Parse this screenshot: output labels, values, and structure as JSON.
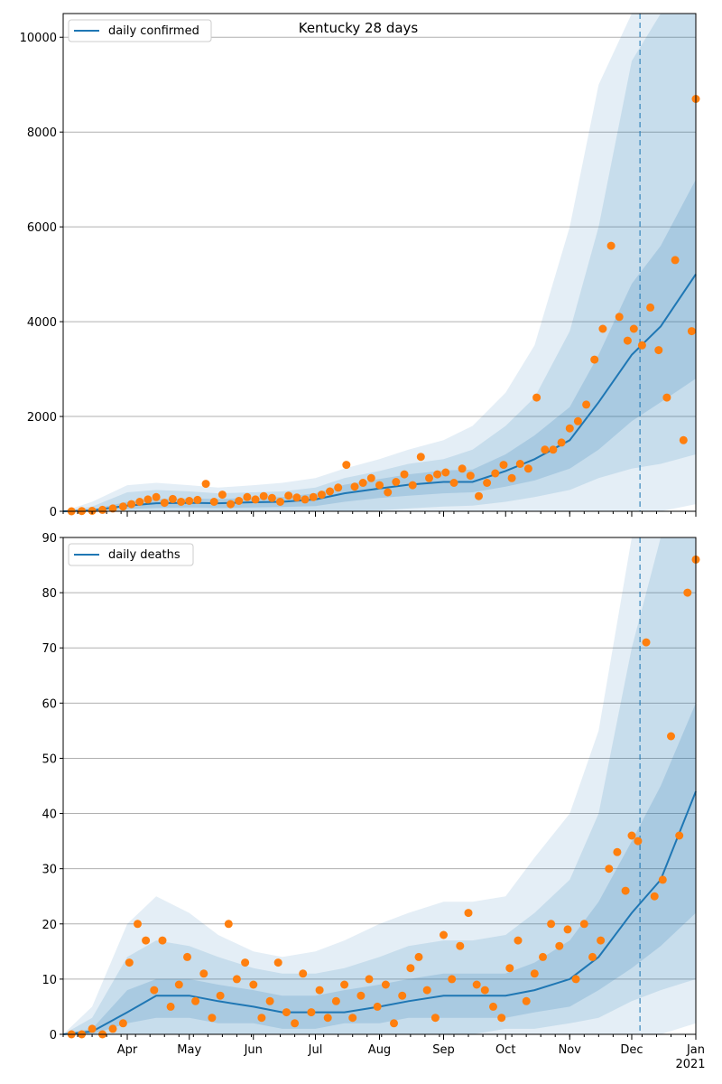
{
  "figure": {
    "title": "Kentucky 28 days"
  },
  "chart_data": [
    {
      "type": "line",
      "title": "Kentucky 28 days",
      "legend": {
        "label": "daily confirmed",
        "placement": "top-left"
      },
      "ylim": [
        0,
        10500
      ],
      "yticks": [
        0,
        2000,
        4000,
        6000,
        8000,
        10000
      ],
      "grid": "horizontal",
      "x_range": [
        "2020-03-01",
        "2021-01-01"
      ],
      "cutoff_date": "2020-12-05",
      "line_color": "#1f77b4",
      "dot_color": "#ff7f0e",
      "band_color": "#1f77b4",
      "mean_series": {
        "dates": [
          "2020-03-01",
          "2020-03-15",
          "2020-04-01",
          "2020-04-15",
          "2020-05-01",
          "2020-05-15",
          "2020-06-01",
          "2020-06-15",
          "2020-07-01",
          "2020-07-15",
          "2020-08-01",
          "2020-08-15",
          "2020-09-01",
          "2020-09-15",
          "2020-10-01",
          "2020-10-15",
          "2020-11-01",
          "2020-11-15",
          "2020-12-01",
          "2020-12-15",
          "2021-01-01"
        ],
        "values": [
          0,
          20,
          120,
          170,
          180,
          170,
          190,
          200,
          250,
          380,
          480,
          560,
          620,
          620,
          850,
          1100,
          1500,
          2300,
          3300,
          3900,
          5000
        ]
      },
      "bands": [
        {
          "level": "outer",
          "lower": [
            0,
            0,
            0,
            0,
            0,
            0,
            0,
            0,
            0,
            0,
            0,
            0,
            0,
            0,
            0,
            0,
            0,
            0,
            0,
            0,
            150
          ],
          "upper": [
            0,
            200,
            550,
            600,
            550,
            500,
            550,
            600,
            700,
            900,
            1100,
            1300,
            1500,
            1800,
            2500,
            3500,
            6000,
            9000,
            10500,
            10500,
            10500
          ]
        },
        {
          "level": "middle",
          "lower": [
            0,
            0,
            0,
            0,
            0,
            0,
            0,
            0,
            0,
            0,
            20,
            60,
            100,
            120,
            200,
            300,
            450,
            700,
            900,
            1000,
            1200
          ],
          "upper": [
            0,
            100,
            400,
            450,
            420,
            380,
            400,
            420,
            500,
            700,
            850,
            1000,
            1100,
            1300,
            1800,
            2400,
            3800,
            6000,
            9500,
            10500,
            10500
          ]
        },
        {
          "level": "inner",
          "lower": [
            0,
            5,
            50,
            70,
            80,
            70,
            80,
            90,
            110,
            200,
            280,
            330,
            380,
            400,
            520,
            650,
            900,
            1300,
            1900,
            2300,
            2800
          ],
          "upper": [
            0,
            40,
            200,
            260,
            270,
            260,
            280,
            300,
            380,
            560,
            680,
            780,
            860,
            880,
            1200,
            1600,
            2200,
            3300,
            4800,
            5600,
            7000
          ]
        }
      ],
      "observed": {
        "dates": [
          "2020-03-05",
          "2020-03-10",
          "2020-03-15",
          "2020-03-20",
          "2020-03-25",
          "2020-03-30",
          "2020-04-03",
          "2020-04-07",
          "2020-04-11",
          "2020-04-15",
          "2020-04-19",
          "2020-04-23",
          "2020-04-27",
          "2020-05-01",
          "2020-05-05",
          "2020-05-09",
          "2020-05-13",
          "2020-05-17",
          "2020-05-21",
          "2020-05-25",
          "2020-05-29",
          "2020-06-02",
          "2020-06-06",
          "2020-06-10",
          "2020-06-14",
          "2020-06-18",
          "2020-06-22",
          "2020-06-26",
          "2020-06-30",
          "2020-07-04",
          "2020-07-08",
          "2020-07-12",
          "2020-07-16",
          "2020-07-20",
          "2020-07-24",
          "2020-07-28",
          "2020-08-01",
          "2020-08-05",
          "2020-08-09",
          "2020-08-13",
          "2020-08-17",
          "2020-08-21",
          "2020-08-25",
          "2020-08-29",
          "2020-09-02",
          "2020-09-06",
          "2020-09-10",
          "2020-09-14",
          "2020-09-18",
          "2020-09-22",
          "2020-09-26",
          "2020-09-30",
          "2020-10-04",
          "2020-10-08",
          "2020-10-12",
          "2020-10-16",
          "2020-10-20",
          "2020-10-24",
          "2020-10-28",
          "2020-11-01",
          "2020-11-05",
          "2020-11-09",
          "2020-11-13",
          "2020-11-17",
          "2020-11-21",
          "2020-11-25",
          "2020-11-29",
          "2020-12-02",
          "2020-12-06",
          "2020-12-10",
          "2020-12-14",
          "2020-12-18",
          "2020-12-22",
          "2020-12-26",
          "2020-12-30",
          "2021-01-01"
        ],
        "values": [
          0,
          5,
          10,
          30,
          60,
          100,
          150,
          200,
          250,
          300,
          180,
          260,
          200,
          220,
          240,
          580,
          200,
          350,
          150,
          220,
          300,
          250,
          320,
          280,
          200,
          330,
          290,
          250,
          300,
          350,
          420,
          500,
          980,
          520,
          600,
          700,
          550,
          400,
          620,
          780,
          550,
          1150,
          700,
          780,
          820,
          600,
          900,
          750,
          320,
          600,
          800,
          980,
          700,
          1000,
          900,
          2400,
          1300,
          1300,
          1450,
          1750,
          1900,
          2250,
          3200,
          3850,
          5600,
          4100,
          3600,
          3850,
          3500,
          4300,
          3400,
          2400,
          5300,
          1500,
          3800,
          8700
        ]
      }
    },
    {
      "type": "line",
      "title": "",
      "legend": {
        "label": "daily deaths",
        "placement": "top-left"
      },
      "ylim": [
        0,
        90
      ],
      "yticks": [
        0,
        10,
        20,
        30,
        40,
        50,
        60,
        70,
        80,
        90
      ],
      "grid": "horizontal",
      "x_range": [
        "2020-03-01",
        "2021-01-01"
      ],
      "cutoff_date": "2020-12-05",
      "line_color": "#1f77b4",
      "dot_color": "#ff7f0e",
      "band_color": "#1f77b4",
      "xtick_labels": [
        "Apr",
        "May",
        "Jun",
        "Jul",
        "Aug",
        "Sep",
        "Oct",
        "Nov",
        "Dec",
        "Jan"
      ],
      "xtick_dates": [
        "2020-04-01",
        "2020-05-01",
        "2020-06-01",
        "2020-07-01",
        "2020-08-01",
        "2020-09-01",
        "2020-10-01",
        "2020-11-01",
        "2020-12-01",
        "2021-01-01"
      ],
      "year_label": "2021",
      "mean_series": {
        "dates": [
          "2020-03-01",
          "2020-03-15",
          "2020-04-01",
          "2020-04-15",
          "2020-05-01",
          "2020-05-15",
          "2020-06-01",
          "2020-06-15",
          "2020-07-01",
          "2020-07-15",
          "2020-08-01",
          "2020-08-15",
          "2020-09-01",
          "2020-09-15",
          "2020-10-01",
          "2020-10-15",
          "2020-11-01",
          "2020-11-15",
          "2020-12-01",
          "2020-12-15",
          "2021-01-01"
        ],
        "values": [
          0,
          0.5,
          4,
          7,
          7,
          6,
          5,
          4,
          4,
          4,
          5,
          6,
          7,
          7,
          7,
          8,
          10,
          14,
          22,
          28,
          44
        ]
      },
      "bands": [
        {
          "level": "outer",
          "lower": [
            0,
            0,
            0,
            0,
            0,
            0,
            0,
            0,
            0,
            0,
            0,
            0,
            0,
            0,
            0,
            0,
            0,
            0,
            0,
            0,
            2
          ],
          "upper": [
            0,
            5,
            20,
            25,
            22,
            18,
            15,
            14,
            15,
            17,
            20,
            22,
            24,
            24,
            25,
            32,
            40,
            55,
            90,
            90,
            90
          ]
        },
        {
          "level": "middle",
          "lower": [
            0,
            0,
            0,
            0,
            0,
            0,
            0,
            0,
            0,
            0,
            0,
            0,
            0,
            0,
            1,
            1,
            2,
            3,
            6,
            8,
            10
          ],
          "upper": [
            0,
            3,
            14,
            17,
            16,
            14,
            12,
            11,
            11,
            12,
            14,
            16,
            17,
            17,
            18,
            22,
            28,
            40,
            70,
            90,
            90
          ]
        },
        {
          "level": "inner",
          "lower": [
            0,
            0,
            2,
            3,
            3,
            2,
            2,
            1,
            1,
            2,
            2,
            3,
            3,
            3,
            3,
            4,
            5,
            8,
            12,
            16,
            22
          ],
          "upper": [
            0,
            1,
            8,
            10,
            10,
            9,
            8,
            7,
            7,
            8,
            9,
            10,
            11,
            11,
            11,
            13,
            17,
            24,
            35,
            45,
            60
          ]
        }
      ],
      "observed": {
        "dates": [
          "2020-03-05",
          "2020-03-10",
          "2020-03-15",
          "2020-03-20",
          "2020-03-25",
          "2020-03-30",
          "2020-04-02",
          "2020-04-06",
          "2020-04-10",
          "2020-04-14",
          "2020-04-18",
          "2020-04-22",
          "2020-04-26",
          "2020-04-30",
          "2020-05-04",
          "2020-05-08",
          "2020-05-12",
          "2020-05-16",
          "2020-05-20",
          "2020-05-24",
          "2020-05-28",
          "2020-06-01",
          "2020-06-05",
          "2020-06-09",
          "2020-06-13",
          "2020-06-17",
          "2020-06-21",
          "2020-06-25",
          "2020-06-29",
          "2020-07-03",
          "2020-07-07",
          "2020-07-11",
          "2020-07-15",
          "2020-07-19",
          "2020-07-23",
          "2020-07-27",
          "2020-07-31",
          "2020-08-04",
          "2020-08-08",
          "2020-08-12",
          "2020-08-16",
          "2020-08-20",
          "2020-08-24",
          "2020-08-28",
          "2020-09-01",
          "2020-09-05",
          "2020-09-09",
          "2020-09-13",
          "2020-09-17",
          "2020-09-21",
          "2020-09-25",
          "2020-09-29",
          "2020-10-03",
          "2020-10-07",
          "2020-10-11",
          "2020-10-15",
          "2020-10-19",
          "2020-10-23",
          "2020-10-27",
          "2020-10-31",
          "2020-11-04",
          "2020-11-08",
          "2020-11-12",
          "2020-11-16",
          "2020-11-20",
          "2020-11-24",
          "2020-11-28",
          "2020-12-01",
          "2020-12-04",
          "2020-12-08",
          "2020-12-12",
          "2020-12-16",
          "2020-12-20",
          "2020-12-24",
          "2020-12-28",
          "2021-01-01"
        ],
        "values": [
          0,
          0,
          1,
          0,
          1,
          2,
          13,
          20,
          17,
          8,
          17,
          5,
          9,
          14,
          6,
          11,
          3,
          7,
          20,
          10,
          13,
          9,
          3,
          6,
          13,
          4,
          2,
          11,
          4,
          8,
          3,
          6,
          9,
          3,
          7,
          10,
          5,
          9,
          2,
          7,
          12,
          14,
          8,
          3,
          18,
          10,
          16,
          22,
          9,
          8,
          5,
          3,
          12,
          17,
          6,
          11,
          14,
          20,
          16,
          19,
          10,
          20,
          14,
          17,
          30,
          33,
          26,
          36,
          35,
          71,
          25,
          28,
          54,
          36,
          80,
          86
        ]
      }
    }
  ]
}
